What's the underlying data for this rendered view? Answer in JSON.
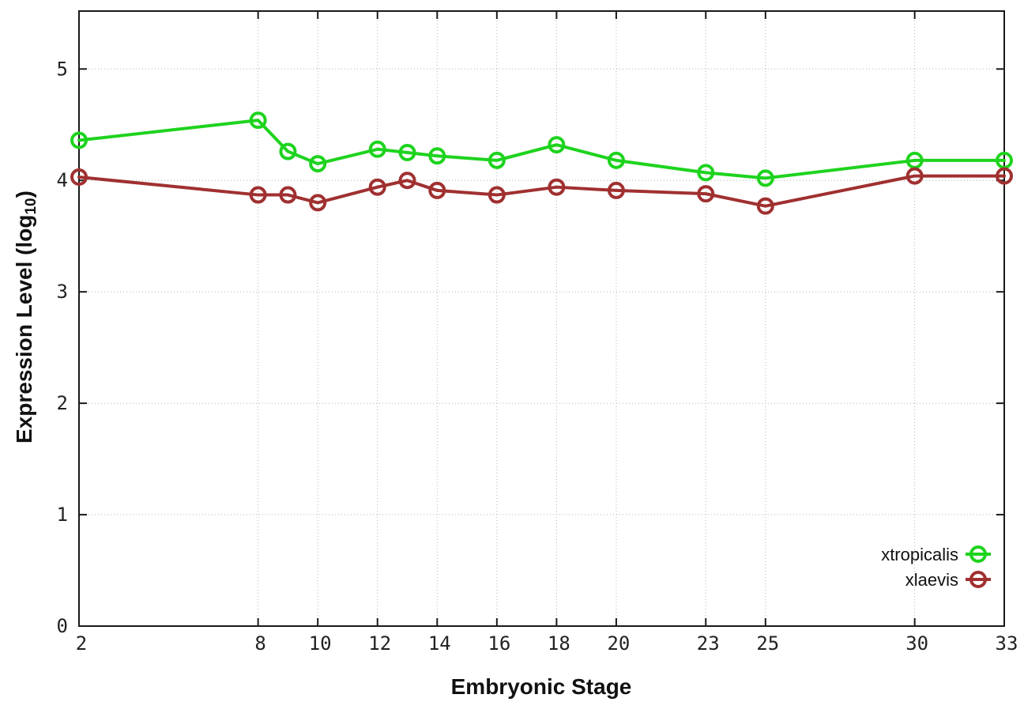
{
  "figure": {
    "background": "#ffffff"
  },
  "chart_data": {
    "type": "line",
    "title": "",
    "xlabel": "Embryonic Stage",
    "ylabel": "Expression Level (log10)",
    "ylabel_rich": {
      "prefix": "Expression Level (log",
      "sub": "10",
      "suffix": ")"
    },
    "x_tick_values": [
      2,
      8,
      10,
      12,
      14,
      16,
      18,
      20,
      23,
      25,
      30,
      33
    ],
    "x_tick_labels": [
      "2",
      "8",
      "10",
      "12",
      "14",
      "16",
      "18",
      "20",
      "23",
      "25",
      "30",
      "33"
    ],
    "y_tick_values": [
      0,
      1,
      2,
      3,
      4,
      5
    ],
    "y_tick_labels": [
      "0",
      "1",
      "2",
      "3",
      "4",
      "5"
    ],
    "xlim": [
      2,
      33
    ],
    "ylim": [
      0,
      5.52
    ],
    "grid": "dotted",
    "axis_color": "#1a1a1a",
    "grid_color": "#b3b3b3",
    "tick_label_color": "#222222",
    "legend": {
      "position": "inside-bottom-right",
      "entries": [
        "xtropicalis",
        "xlaevis"
      ]
    },
    "x": [
      2,
      8,
      9,
      10,
      12,
      13,
      14,
      16,
      18,
      20,
      23,
      25,
      30,
      33
    ],
    "series": [
      {
        "name": "xtropicalis",
        "color": "#1ed31e",
        "marker": "open-circle",
        "values": [
          4.36,
          4.54,
          4.26,
          4.15,
          4.28,
          4.25,
          4.22,
          4.18,
          4.32,
          4.18,
          4.07,
          4.02,
          4.18,
          4.18
        ]
      },
      {
        "name": "xlaevis",
        "color": "#a03030",
        "marker": "open-circle",
        "values": [
          4.03,
          3.87,
          3.87,
          3.8,
          3.94,
          4.0,
          3.91,
          3.87,
          3.94,
          3.91,
          3.88,
          3.77,
          4.04,
          4.04
        ]
      }
    ]
  }
}
